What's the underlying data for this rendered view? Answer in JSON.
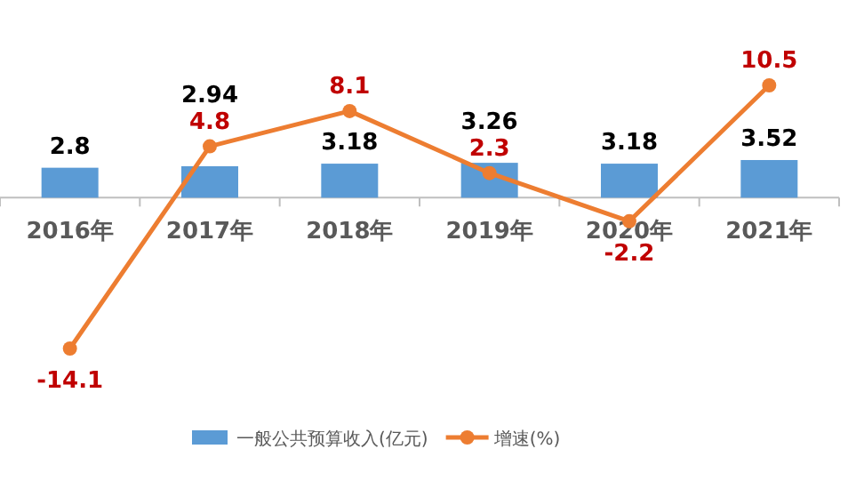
{
  "chart_data": {
    "type": "bar",
    "categories": [
      "2016年",
      "2017年",
      "2018年",
      "2019年",
      "2020年",
      "2021年"
    ],
    "series": [
      {
        "name": "一般公共预算收入(亿元)",
        "color": "#5b9bd5",
        "values": [
          2.8,
          2.94,
          3.18,
          3.26,
          3.18,
          3.52
        ]
      },
      {
        "name": "增速(%)",
        "type": "line",
        "color": "#ed7d31",
        "values": [
          -14.1,
          4.8,
          8.1,
          2.3,
          -2.2,
          10.5
        ]
      }
    ],
    "marker": "circle",
    "data_labels": true,
    "legend": "bottom"
  }
}
